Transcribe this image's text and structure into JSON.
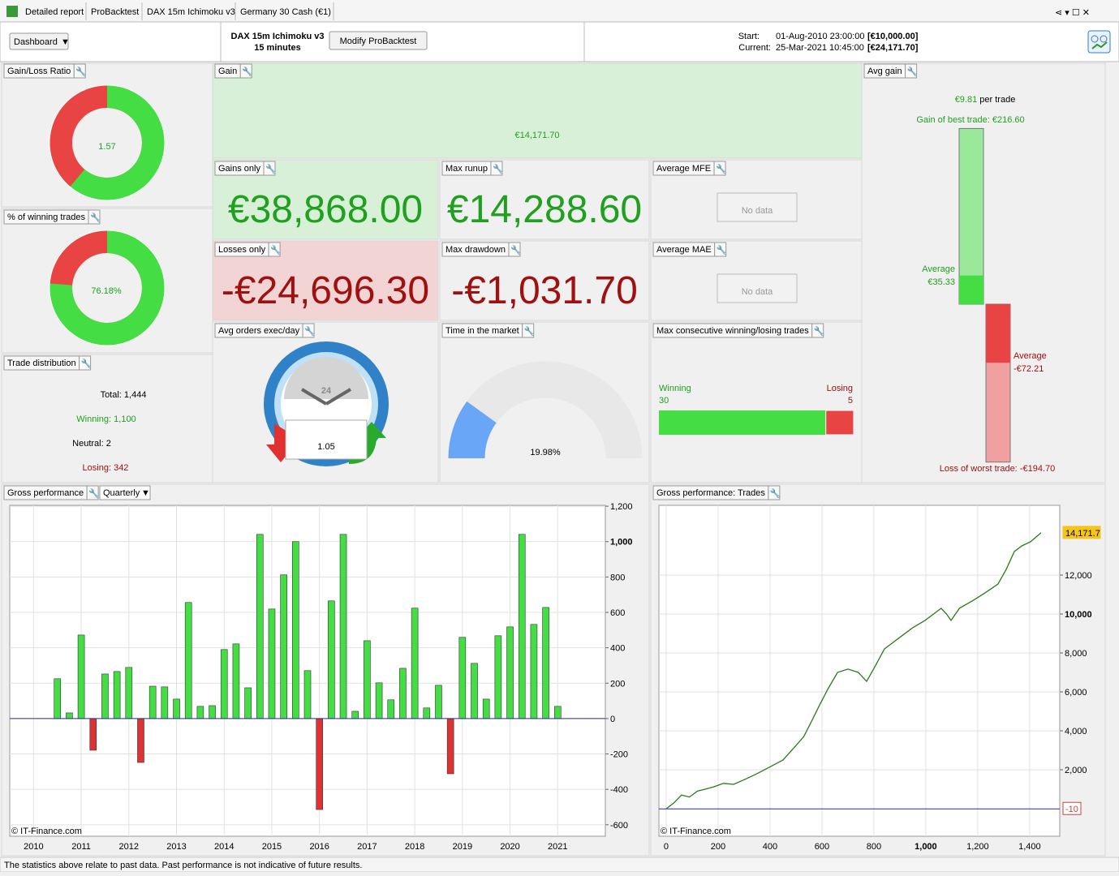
{
  "tabs": [
    "Detailed report",
    "ProBacktest",
    "DAX 15m Ichimoku v3",
    "Germany 30 Cash (€1)"
  ],
  "toolbar": {
    "dashboard": "Dashboard",
    "strategy": "DAX 15m Ichimoku v3",
    "timeframe": "15 minutes",
    "modify": "Modify ProBacktest",
    "start_label": "Start:",
    "start_date": "01-Aug-2010 23:00:00",
    "start_capital": "[€10,000.00]",
    "current_label": "Current:",
    "current_date": "25-Mar-2021 10:45:00",
    "current_capital": "[€24,171.70]"
  },
  "panels": {
    "gain_loss_ratio": {
      "title": "Gain/Loss Ratio",
      "value": 1.57
    },
    "winning_trades": {
      "title": "% of winning trades",
      "value": 76.18,
      "label": "76.18%"
    },
    "trade_distribution": {
      "title": "Trade distribution",
      "lines": [
        "Total: 1,444",
        "Winning: 1,100",
        "Neutral: 2",
        "Losing: 342"
      ]
    },
    "gain": {
      "title": "Gain",
      "value": "€14,171.70"
    },
    "gains_only": {
      "title": "Gains only",
      "value": "€38,868.00"
    },
    "max_runup": {
      "title": "Max runup",
      "value": "€14,288.60"
    },
    "average_mfe": {
      "title": "Average MFE",
      "value": "No data"
    },
    "losses_only": {
      "title": "Losses only",
      "value": "-€24,696.30"
    },
    "max_drawdown": {
      "title": "Max drawdown",
      "value": "-€1,031.70"
    },
    "average_mae": {
      "title": "Average MAE",
      "value": "No data"
    },
    "avg_orders": {
      "title": "Avg orders exec/day",
      "dial": "24",
      "value": "1.05"
    },
    "time_in_market": {
      "title": "Time in the market",
      "value": 19.98,
      "label": "19.98%",
      "ylim": [
        0,
        100
      ]
    },
    "max_consecutive": {
      "title": "Max consecutive winning/losing trades",
      "winning_label": "Winning",
      "winning": 30,
      "losing_label": "Losing",
      "losing": 5
    },
    "avg_gain": {
      "title": "Avg gain",
      "value": 9.81,
      "value_label": "€9.81",
      "unit": "per trade",
      "best": {
        "label": "Gain of best trade:",
        "value": 216.6,
        "value_label": "€216.60"
      },
      "avg_win": {
        "label": "Average",
        "value": 35.33,
        "value_label": "€35.33"
      },
      "avg_loss": {
        "label": "Average",
        "value": -72.21,
        "value_label": "-€72.21"
      },
      "worst": {
        "label": "Loss of worst trade:",
        "value": -194.7,
        "value_label": "-€194.70"
      }
    }
  },
  "chart_data": [
    {
      "type": "bar",
      "title": "Gross performance",
      "period": "Quarterly",
      "x": [
        2010.5,
        2010.75,
        2011,
        2011.25,
        2011.5,
        2011.75,
        2012,
        2012.25,
        2012.5,
        2012.75,
        2013,
        2013.25,
        2013.5,
        2013.75,
        2014,
        2014.25,
        2014.5,
        2014.75,
        2015,
        2015.25,
        2015.5,
        2015.75,
        2016,
        2016.25,
        2016.5,
        2016.75,
        2017,
        2017.25,
        2017.5,
        2017.75,
        2018,
        2018.25,
        2018.5,
        2018.75,
        2019,
        2019.25,
        2019.5,
        2019.75,
        2020,
        2020.25,
        2020.5,
        2020.75,
        2021
      ],
      "values": [
        225,
        32,
        472,
        -179,
        252,
        266,
        289,
        -248,
        183,
        179,
        110,
        656,
        69,
        73,
        390,
        422,
        174,
        1041,
        619,
        812,
        1000,
        271,
        -514,
        665,
        1041,
        41,
        440,
        202,
        106,
        284,
        624,
        60,
        188,
        -312,
        459,
        312,
        110,
        468,
        518,
        1041,
        532,
        628,
        69
      ],
      "xlim": [
        2009.5,
        2022
      ],
      "xticks": [
        2010,
        2011,
        2012,
        2013,
        2014,
        2015,
        2016,
        2017,
        2018,
        2019,
        2020,
        2021
      ],
      "ylim": [
        -665,
        1205
      ],
      "yticks": [
        -600,
        -400,
        -200,
        0,
        200,
        400,
        600,
        800,
        {
          "value": 1000,
          "label": "1,000"
        },
        {
          "value": 1200,
          "label": "1,200"
        }
      ],
      "colors": {
        "positive": "#44dd44",
        "negative": "#dd3333",
        "zero_line": "#2a2aa0"
      },
      "grid": true,
      "credit": "© IT-Finance.com"
    },
    {
      "type": "line",
      "title": "Gross performance: Trades",
      "x": [
        0,
        30,
        59,
        90,
        120,
        150,
        184,
        220,
        260,
        309,
        350,
        403,
        450,
        497,
        530,
        559,
        590,
        622,
        660,
        700,
        740,
        772,
        800,
        841,
        870,
        903,
        950,
        997,
        1030,
        1059,
        1080,
        1097,
        1130,
        1184,
        1230,
        1278,
        1310,
        1341,
        1370,
        1403,
        1420,
        1444
      ],
      "values": [
        -10,
        300,
        700,
        600,
        900,
        1000,
        1125,
        1300,
        1250,
        1540,
        1800,
        2170,
        2500,
        3200,
        3700,
        4460,
        5300,
        6125,
        7000,
        7170,
        7000,
        6540,
        7200,
        8210,
        8500,
        8830,
        9300,
        9670,
        10000,
        10290,
        10000,
        9670,
        10300,
        10710,
        11100,
        11540,
        12300,
        13210,
        13500,
        13710,
        13900,
        14171.7
      ],
      "xlim": [
        -28,
        1516
      ],
      "xticks": [
        0,
        200,
        400,
        600,
        800,
        {
          "value": 1000,
          "label": "1,000"
        },
        {
          "value": 1200,
          "label": "1,200"
        },
        {
          "value": 1400,
          "label": "1,400"
        }
      ],
      "ylim": [
        -1417,
        15583
      ],
      "yticks": [
        {
          "value": 2000,
          "label": "2,000"
        },
        {
          "value": 4000,
          "label": "4,000"
        },
        {
          "value": 6000,
          "label": "6,000"
        },
        {
          "value": 8000,
          "label": "8,000"
        },
        {
          "value": 10000,
          "label": "10,000"
        },
        {
          "value": 12000,
          "label": "12,000"
        }
      ],
      "annotations": [
        {
          "value": 14171.7,
          "label": "14,171.7",
          "color": "#f5c518"
        },
        {
          "value": -10,
          "label": "-10",
          "color": "#d04040"
        }
      ],
      "color": "#2a7a1a",
      "zero_line": "#2a2aa0",
      "grid": true,
      "credit": "© IT-Finance.com"
    }
  ],
  "footer": "The statistics above relate to past data. Past performance is not indicative of future results."
}
